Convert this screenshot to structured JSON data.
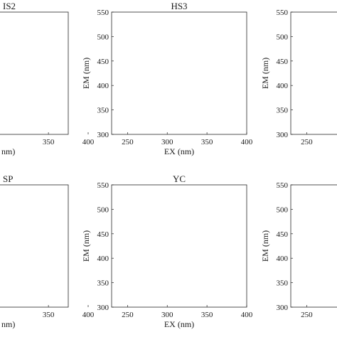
{
  "chart_data": [
    {
      "type": "contour",
      "title": "IS2",
      "xlabel": "nm)",
      "ylabel": "",
      "xticks": [
        "350",
        "400"
      ],
      "yticks": [],
      "xlim": [
        230,
        400
      ],
      "ylim": [
        300,
        550
      ],
      "row": 0,
      "col": 0
    },
    {
      "type": "contour",
      "title": "HS3",
      "xlabel": "EX (nm)",
      "ylabel": "EM (nm)",
      "xticks": [
        "250",
        "300",
        "350",
        "400"
      ],
      "yticks": [
        "300",
        "350",
        "400",
        "450",
        "500",
        "550"
      ],
      "xlim": [
        230,
        400
      ],
      "ylim": [
        300,
        550
      ],
      "row": 0,
      "col": 1
    },
    {
      "type": "contour",
      "title": "",
      "xlabel": "",
      "ylabel": "EM (nm)",
      "xticks": [
        "250"
      ],
      "yticks": [
        "300",
        "350",
        "400",
        "450",
        "500",
        "550"
      ],
      "xlim": [
        230,
        400
      ],
      "ylim": [
        300,
        550
      ],
      "row": 0,
      "col": 2
    },
    {
      "type": "contour",
      "title": "SP",
      "xlabel": "nm)",
      "ylabel": "",
      "xticks": [
        "350",
        "400"
      ],
      "yticks": [],
      "xlim": [
        230,
        400
      ],
      "ylim": [
        300,
        550
      ],
      "row": 1,
      "col": 0
    },
    {
      "type": "contour",
      "title": "YC",
      "xlabel": "EX (nm)",
      "ylabel": "EM (nm)",
      "xticks": [
        "250",
        "300",
        "350",
        "400"
      ],
      "yticks": [
        "300",
        "350",
        "400",
        "450",
        "500",
        "550"
      ],
      "xlim": [
        230,
        400
      ],
      "ylim": [
        300,
        550
      ],
      "row": 1,
      "col": 1
    },
    {
      "type": "contour",
      "title": "",
      "xlabel": "",
      "ylabel": "EM (nm)",
      "xticks": [
        "250"
      ],
      "yticks": [
        "300",
        "350",
        "400",
        "450",
        "500",
        "550"
      ],
      "xlim": [
        230,
        400
      ],
      "ylim": [
        300,
        550
      ],
      "row": 1,
      "col": 2
    }
  ],
  "colors": {
    "contour_line": "#3d3dbf",
    "scatter_core": "#f3e838",
    "scatter_mid": "#2fb47c",
    "scatter_outer": "#3b3fc2",
    "frame": "#262626"
  }
}
